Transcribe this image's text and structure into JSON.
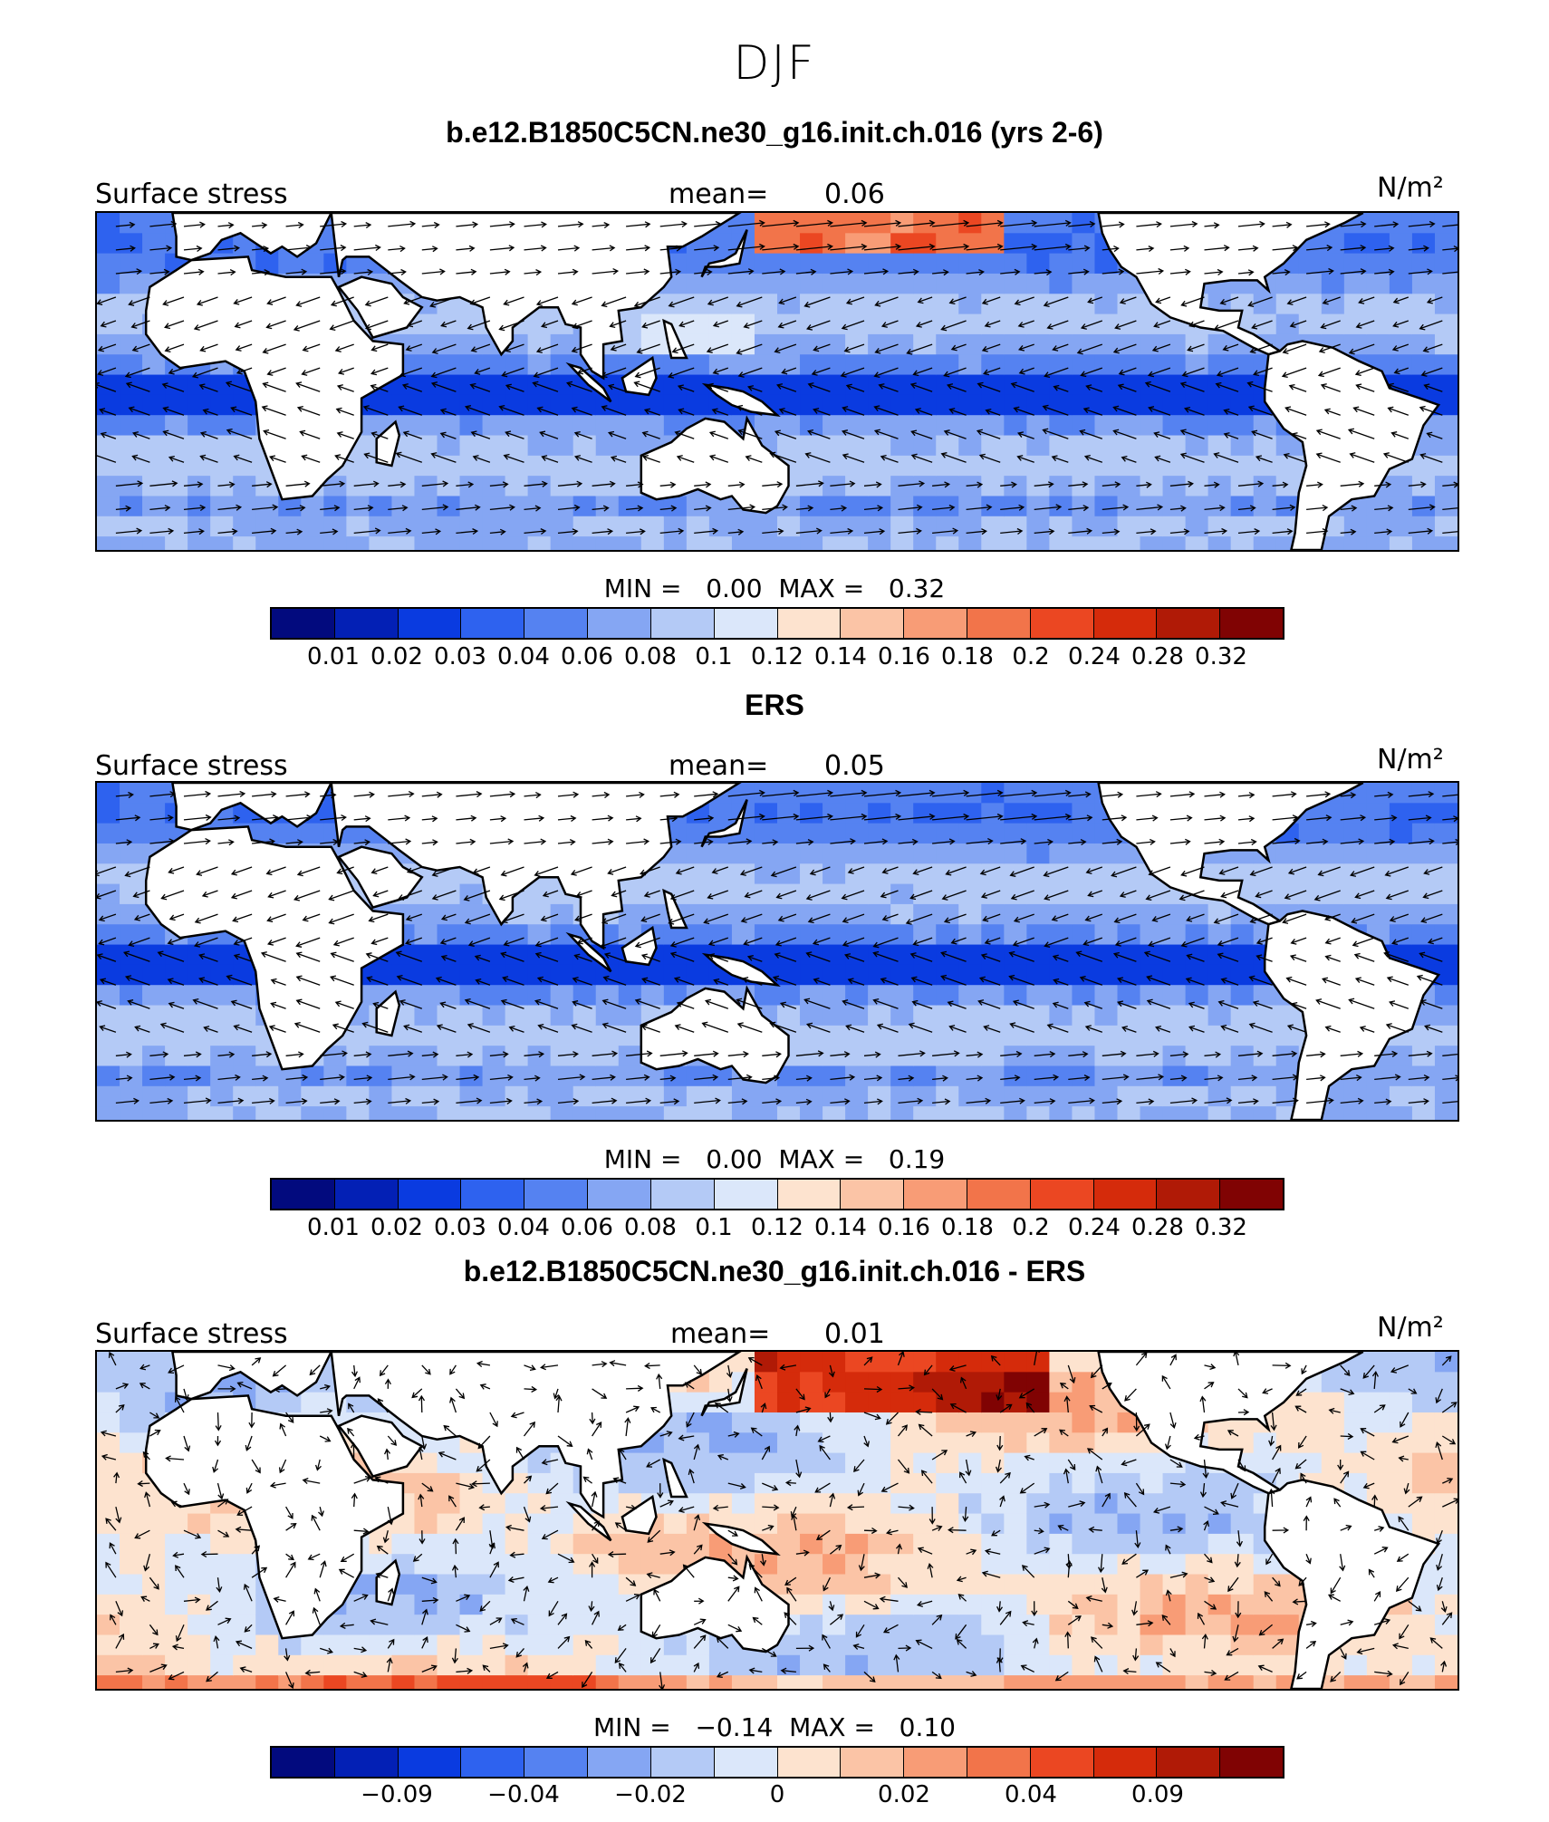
{
  "title": "DJF",
  "panels": [
    {
      "title": "b.e12.B1850C5CN.ne30_g16.init.ch.016 (yrs 2-6)",
      "variable": "Surface stress",
      "mean_label": "mean=",
      "mean_value": "0.06",
      "units": "N/m²",
      "min_label": "MIN =",
      "min_value": "0.00",
      "max_label": "MAX =",
      "max_value": "0.32",
      "ticks": [
        "0.01",
        "0.02",
        "0.03",
        "0.04",
        "0.06",
        "0.08",
        "0.1",
        "0.12",
        "0.14",
        "0.16",
        "0.18",
        "0.2",
        "0.24",
        "0.28",
        "0.32"
      ],
      "field": "model"
    },
    {
      "title": "ERS",
      "variable": "Surface stress",
      "mean_label": "mean=",
      "mean_value": "0.05",
      "units": "N/m²",
      "min_label": "MIN =",
      "min_value": "0.00",
      "max_label": "MAX =",
      "max_value": "0.19",
      "ticks": [
        "0.01",
        "0.02",
        "0.03",
        "0.04",
        "0.06",
        "0.08",
        "0.1",
        "0.12",
        "0.14",
        "0.16",
        "0.18",
        "0.2",
        "0.24",
        "0.28",
        "0.32"
      ],
      "field": "obs"
    },
    {
      "title": "b.e12.B1850C5CN.ne30_g16.init.ch.016 - ERS",
      "variable": "Surface stress",
      "mean_label": "mean=",
      "mean_value": "0.01",
      "units": "N/m²",
      "min_label": "MIN =",
      "min_value": "−0.14",
      "max_label": "MAX =",
      "max_value": "0.10",
      "ticks": [
        "",
        "−0.09",
        "",
        "−0.04",
        "",
        "−0.02",
        "",
        "0",
        "",
        "0.02",
        "",
        "0.04",
        "",
        "0.09",
        ""
      ],
      "field": "diff"
    }
  ],
  "colorbar_colors": [
    "#020a7e",
    "#0320b5",
    "#0a3be0",
    "#2e62ef",
    "#5582f1",
    "#85a6f3",
    "#b4caf6",
    "#dbe7fa",
    "#fde3cf",
    "#fbc4a6",
    "#f89c76",
    "#f2744a",
    "#eb4722",
    "#d52b0b",
    "#b01a06",
    "#800303"
  ]
}
